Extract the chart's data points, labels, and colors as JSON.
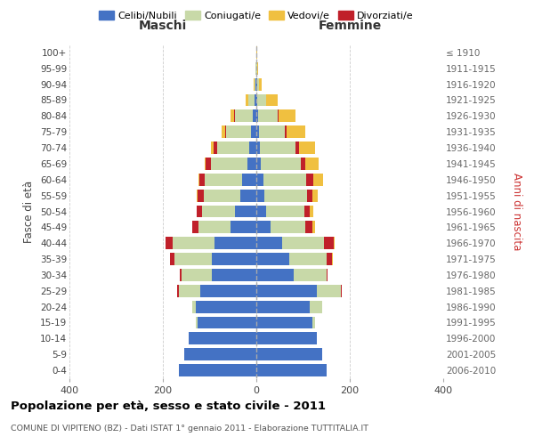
{
  "age_groups": [
    "0-4",
    "5-9",
    "10-14",
    "15-19",
    "20-24",
    "25-29",
    "30-34",
    "35-39",
    "40-44",
    "45-49",
    "50-54",
    "55-59",
    "60-64",
    "65-69",
    "70-74",
    "75-79",
    "80-84",
    "85-89",
    "90-94",
    "95-99",
    "100+"
  ],
  "birth_years": [
    "2006-2010",
    "2001-2005",
    "1996-2000",
    "1991-1995",
    "1986-1990",
    "1981-1985",
    "1976-1980",
    "1971-1975",
    "1966-1970",
    "1961-1965",
    "1956-1960",
    "1951-1955",
    "1946-1950",
    "1941-1945",
    "1936-1940",
    "1931-1935",
    "1926-1930",
    "1921-1925",
    "1916-1920",
    "1911-1915",
    "≤ 1910"
  ],
  "colors": {
    "celibe": "#4472c4",
    "coniugato": "#c8d9a8",
    "vedovo": "#f0c040",
    "divorziato": "#c0202a"
  },
  "maschi": {
    "celibe": [
      165,
      155,
      145,
      125,
      130,
      120,
      95,
      95,
      90,
      55,
      45,
      35,
      30,
      20,
      16,
      12,
      8,
      3,
      1,
      0,
      0
    ],
    "coniugato": [
      0,
      0,
      0,
      5,
      8,
      45,
      65,
      80,
      90,
      68,
      72,
      78,
      80,
      78,
      68,
      52,
      38,
      15,
      3,
      1,
      0
    ],
    "vedovo": [
      0,
      0,
      0,
      0,
      0,
      0,
      0,
      0,
      0,
      0,
      0,
      2,
      2,
      3,
      5,
      8,
      8,
      5,
      2,
      0,
      0
    ],
    "divorziato": [
      0,
      0,
      0,
      0,
      0,
      5,
      3,
      10,
      15,
      15,
      10,
      12,
      12,
      10,
      8,
      3,
      2,
      0,
      0,
      0,
      0
    ]
  },
  "femmine": {
    "celibe": [
      150,
      140,
      130,
      120,
      115,
      130,
      80,
      70,
      55,
      30,
      20,
      18,
      15,
      10,
      8,
      5,
      4,
      2,
      1,
      0,
      0
    ],
    "coniugato": [
      0,
      0,
      0,
      5,
      25,
      50,
      70,
      80,
      90,
      75,
      82,
      90,
      92,
      85,
      75,
      55,
      42,
      18,
      5,
      1,
      0
    ],
    "vedovo": [
      0,
      0,
      0,
      0,
      0,
      0,
      0,
      2,
      3,
      5,
      8,
      12,
      20,
      28,
      35,
      40,
      35,
      25,
      5,
      2,
      1
    ],
    "divorziato": [
      0,
      0,
      0,
      0,
      0,
      2,
      3,
      12,
      20,
      15,
      12,
      12,
      15,
      10,
      8,
      5,
      2,
      0,
      0,
      0,
      0
    ]
  },
  "xlim": 400,
  "title": "Popolazione per età, sesso e stato civile - 2011",
  "subtitle": "COMUNE DI VIPITENO (BZ) - Dati ISTAT 1° gennaio 2011 - Elaborazione TUTTITALIA.IT",
  "xlabel_left": "Maschi",
  "xlabel_right": "Femmine",
  "ylabel_left": "Fasce di età",
  "ylabel_right": "Anni di nascita",
  "legend_labels": [
    "Celibi/Nubili",
    "Coniugati/e",
    "Vedovi/e",
    "Divorziati/e"
  ]
}
